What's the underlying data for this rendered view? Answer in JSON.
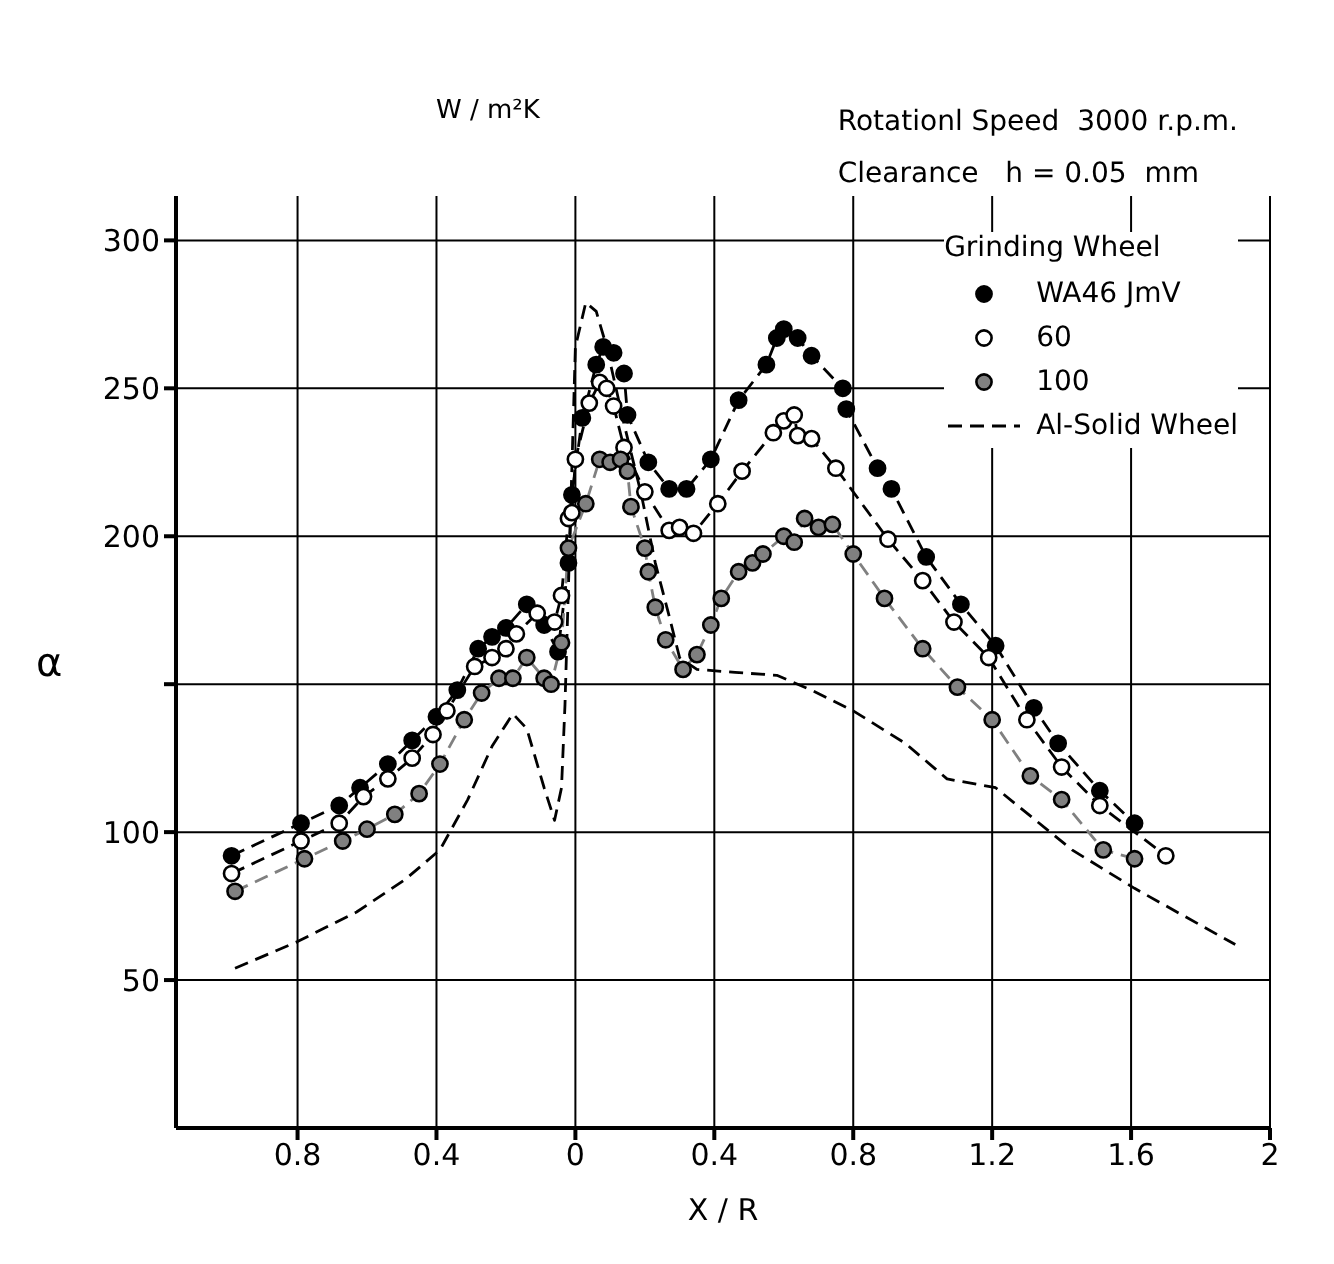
{
  "chart_data": {
    "type": "line",
    "xlabel": "X / R",
    "ylabel": "α",
    "annotations": [
      "W / m²K",
      "Rotationl Speed  3000 r.p.m.",
      "Clearance   h = 0.05  mm"
    ],
    "legend_title": "Grinding Wheel",
    "legend": "top right",
    "grid": true,
    "xlim": [
      -1.15,
      2.0
    ],
    "xticks": [
      {
        "value": -0.8,
        "label": "0.8"
      },
      {
        "value": -0.4,
        "label": "0.4"
      },
      0,
      0.4,
      0.8,
      1.2,
      1.6,
      2.0
    ],
    "ylim": [
      0,
      315
    ],
    "yticks": [
      50,
      100,
      {
        "value": 150,
        "label": null
      },
      200,
      250,
      300
    ],
    "series": [
      {
        "name": "WA46 JmV",
        "color": "#000000",
        "marker": "circle",
        "line_style": "dashed",
        "x": [
          -0.99,
          -0.79,
          -0.68,
          -0.62,
          -0.54,
          -0.47,
          -0.4,
          -0.34,
          -0.28,
          -0.24,
          -0.2,
          -0.14,
          -0.09,
          -0.05,
          -0.02,
          -0.01,
          0.02,
          0.06,
          0.08,
          0.11,
          0.14,
          0.15,
          0.21,
          0.27,
          0.32,
          0.39,
          0.47,
          0.55,
          0.58,
          0.6,
          0.64,
          0.68,
          0.77,
          0.78,
          0.87,
          0.91,
          1.01,
          1.11,
          1.21,
          1.32,
          1.39,
          1.51,
          1.61
        ],
        "values": [
          92,
          103,
          109,
          115,
          123,
          131,
          139,
          148,
          162,
          166,
          169,
          177,
          170,
          161,
          191,
          214,
          240,
          258,
          264,
          262,
          255,
          241,
          225,
          216,
          216,
          226,
          246,
          258,
          267,
          270,
          267,
          261,
          250,
          243,
          223,
          216,
          193,
          177,
          163,
          142,
          130,
          114,
          103
        ]
      },
      {
        "name": "60",
        "color": "#ffffff",
        "marker": "circle",
        "line_style": "dashed",
        "x": [
          -0.99,
          -0.79,
          -0.68,
          -0.61,
          -0.54,
          -0.47,
          -0.41,
          -0.37,
          -0.29,
          -0.24,
          -0.2,
          -0.17,
          -0.11,
          -0.06,
          -0.04,
          -0.02,
          -0.01,
          0.0,
          0.04,
          0.07,
          0.09,
          0.11,
          0.14,
          0.2,
          0.27,
          0.3,
          0.34,
          0.41,
          0.48,
          0.57,
          0.6,
          0.63,
          0.64,
          0.68,
          0.75,
          0.9,
          1.0,
          1.09,
          1.19,
          1.3,
          1.4,
          1.51,
          1.7
        ],
        "values": [
          86,
          97,
          103,
          112,
          118,
          125,
          133,
          141,
          156,
          159,
          162,
          167,
          174,
          171,
          180,
          206,
          208,
          226,
          245,
          252,
          250,
          244,
          230,
          215,
          202,
          203,
          201,
          211,
          222,
          235,
          239,
          241,
          234,
          233,
          223,
          199,
          185,
          171,
          159,
          138,
          122,
          109,
          92
        ]
      },
      {
        "name": "100",
        "color": "#808080",
        "marker": "circle",
        "line_style": "dashed",
        "x": [
          -0.98,
          -0.78,
          -0.67,
          -0.6,
          -0.52,
          -0.45,
          -0.39,
          -0.32,
          -0.27,
          -0.22,
          -0.18,
          -0.14,
          -0.09,
          -0.07,
          -0.04,
          -0.02,
          0.03,
          0.07,
          0.1,
          0.13,
          0.15,
          0.16,
          0.2,
          0.21,
          0.23,
          0.26,
          0.31,
          0.35,
          0.39,
          0.42,
          0.47,
          0.51,
          0.54,
          0.6,
          0.63,
          0.66,
          0.7,
          0.74,
          0.8,
          0.89,
          1.0,
          1.1,
          1.2,
          1.31,
          1.4,
          1.52,
          1.61
        ],
        "values": [
          80,
          91,
          97,
          101,
          106,
          113,
          123,
          138,
          147,
          152,
          152,
          159,
          152,
          150,
          164,
          196,
          211,
          226,
          225,
          226,
          222,
          210,
          196,
          188,
          176,
          165,
          155,
          160,
          170,
          179,
          188,
          191,
          194,
          200,
          198,
          206,
          203,
          204,
          194,
          179,
          162,
          149,
          138,
          119,
          111,
          94,
          91
        ]
      },
      {
        "name": "Al-Solid Wheel",
        "color": "#000000",
        "marker": "none",
        "line_style": "dashed",
        "x": [
          -0.98,
          -0.8,
          -0.63,
          -0.49,
          -0.39,
          -0.31,
          -0.24,
          -0.18,
          -0.14,
          -0.09,
          -0.06,
          -0.04,
          -0.03,
          -0.02,
          0.0,
          0.03,
          0.06,
          0.09,
          0.14,
          0.19,
          0.23,
          0.27,
          0.3,
          0.35,
          0.46,
          0.58,
          0.68,
          0.8,
          0.95,
          1.07,
          1.21,
          1.43,
          1.61,
          1.9
        ],
        "values": [
          54,
          63,
          73,
          84,
          94,
          111,
          129,
          140,
          135,
          115,
          104,
          115,
          143,
          183,
          264,
          279,
          276,
          264,
          238,
          214,
          191,
          173,
          159,
          155,
          154,
          153,
          148,
          141,
          130,
          118,
          115,
          94,
          81,
          62
        ]
      }
    ]
  }
}
